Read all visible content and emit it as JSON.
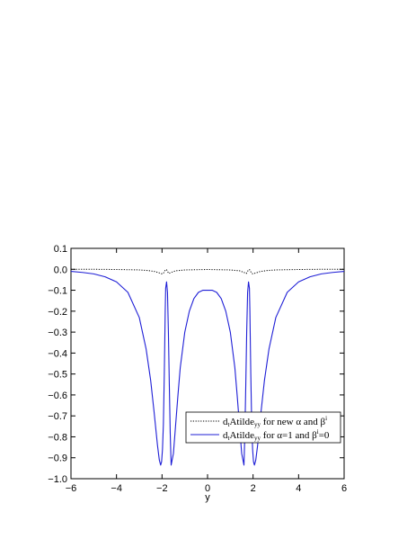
{
  "chart_data": {
    "type": "line",
    "title": "",
    "xlabel": "y",
    "ylabel": "",
    "xlim": [
      -6,
      6
    ],
    "ylim": [
      -1.0,
      0.1
    ],
    "xticks": [
      -6,
      -4,
      -2,
      0,
      2,
      4,
      6
    ],
    "xtick_labels": [
      "−6",
      "−4",
      "−2",
      "0",
      "2",
      "4",
      "6"
    ],
    "yticks": [
      0.1,
      0.0,
      -0.1,
      -0.2,
      -0.3,
      -0.4,
      -0.5,
      -0.6,
      -0.7,
      -0.8,
      -0.9,
      -1.0
    ],
    "ytick_labels": [
      "0.1",
      "0.0",
      "−0.1",
      "−0.2",
      "−0.3",
      "−0.4",
      "−0.5",
      "−0.6",
      "−0.7",
      "−0.8",
      "−0.9",
      "−1.0"
    ],
    "grid": false,
    "legend_position": "bottom-right",
    "series": [
      {
        "name": "dₜAtildeᵧᵧ for new α and βⁱ",
        "legend": {
          "main": "d",
          "sub1": "t",
          "mid": "Atilde",
          "sub2": "yy",
          "text": " for new α and β",
          "sup": "i",
          "tail": ""
        },
        "color": "#000000",
        "style": "dotted",
        "x": [
          -6,
          -5,
          -4,
          -3,
          -2.6,
          -2.3,
          -2.1,
          -2.0,
          -1.95,
          -1.9,
          -1.85,
          -1.8,
          -1.75,
          -1.7,
          -1.6,
          -1.4,
          -1.0,
          0,
          1.0,
          1.4,
          1.6,
          1.7,
          1.75,
          1.8,
          1.85,
          1.9,
          1.95,
          2.0,
          2.1,
          2.3,
          2.6,
          3,
          4,
          5,
          6
        ],
        "y": [
          0.0,
          0.0,
          -0.001,
          -0.003,
          -0.006,
          -0.011,
          -0.018,
          -0.022,
          -0.02,
          -0.012,
          -0.002,
          -0.002,
          -0.012,
          -0.02,
          -0.015,
          -0.007,
          -0.003,
          -0.001,
          -0.003,
          -0.007,
          -0.015,
          -0.02,
          -0.012,
          -0.002,
          -0.002,
          -0.012,
          -0.02,
          -0.022,
          -0.018,
          -0.011,
          -0.006,
          -0.003,
          -0.001,
          0.0,
          0.0
        ]
      },
      {
        "name": "dₜAtildeᵧᵧ for α=1 and βⁱ=0",
        "legend": {
          "main": "d",
          "sub1": "t",
          "mid": "Atilde",
          "sub2": "yy",
          "text": " for α=1 and β",
          "sup": "i",
          "tail": "=0"
        },
        "color": "#1f1fd6",
        "style": "solid",
        "x": [
          -6,
          -5.5,
          -5,
          -4.5,
          -4,
          -3.5,
          -3,
          -2.7,
          -2.5,
          -2.35,
          -2.2,
          -2.12,
          -2.06,
          -2.02,
          -1.98,
          -1.94,
          -1.9,
          -1.86,
          -1.84,
          -1.8,
          -1.76,
          -1.72,
          -1.68,
          -1.64,
          -1.6,
          -1.5,
          -1.4,
          -1.3,
          -1.2,
          -1.0,
          -0.8,
          -0.6,
          -0.4,
          -0.2,
          0,
          0.2,
          0.4,
          0.6,
          0.8,
          1.0,
          1.2,
          1.3,
          1.4,
          1.5,
          1.6,
          1.64,
          1.68,
          1.72,
          1.76,
          1.8,
          1.84,
          1.86,
          1.9,
          1.94,
          1.98,
          2.02,
          2.06,
          2.12,
          2.2,
          2.35,
          2.5,
          2.7,
          3,
          3.5,
          4,
          4.5,
          5,
          5.5,
          6
        ],
        "y": [
          -0.01,
          -0.015,
          -0.022,
          -0.036,
          -0.06,
          -0.11,
          -0.23,
          -0.38,
          -0.53,
          -0.68,
          -0.84,
          -0.91,
          -0.935,
          -0.92,
          -0.86,
          -0.74,
          -0.5,
          -0.2,
          -0.09,
          -0.06,
          -0.11,
          -0.3,
          -0.55,
          -0.78,
          -0.935,
          -0.88,
          -0.74,
          -0.6,
          -0.47,
          -0.3,
          -0.2,
          -0.14,
          -0.11,
          -0.1,
          -0.1,
          -0.1,
          -0.11,
          -0.14,
          -0.2,
          -0.3,
          -0.47,
          -0.6,
          -0.74,
          -0.88,
          -0.935,
          -0.78,
          -0.55,
          -0.3,
          -0.11,
          -0.06,
          -0.09,
          -0.2,
          -0.5,
          -0.74,
          -0.86,
          -0.92,
          -0.935,
          -0.91,
          -0.84,
          -0.68,
          -0.53,
          -0.38,
          -0.23,
          -0.11,
          -0.06,
          -0.036,
          -0.022,
          -0.015,
          -0.01
        ]
      }
    ]
  }
}
